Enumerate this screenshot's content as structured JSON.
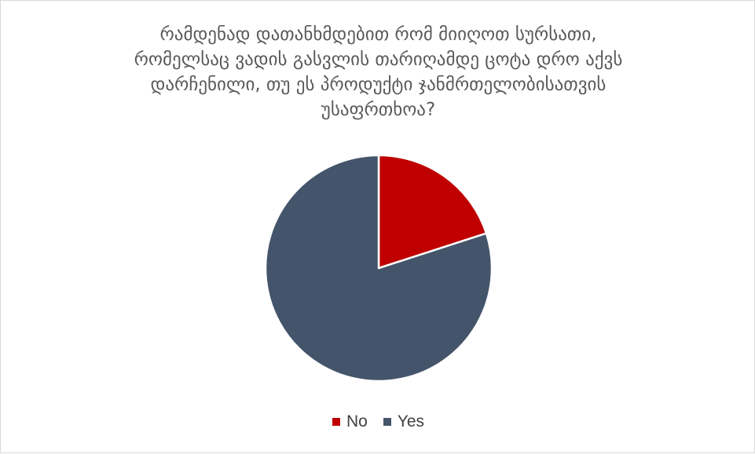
{
  "chart_data": {
    "type": "pie",
    "title": "რამდენად დათანხმდებით რომ მიიღოთ სურსათი,\nრომელსაც ვადის გასვლის თარიღამდე ცოტა დრო აქვს\nდარჩენილი, თუ ეს პროდუქტი ჯანმრთელობისათვის\nუსაფრთხოა?",
    "categories": [
      "No",
      "Yes"
    ],
    "values": [
      20,
      80
    ],
    "colors": [
      "#c00000",
      "#44546a"
    ],
    "legend_position": "bottom"
  }
}
